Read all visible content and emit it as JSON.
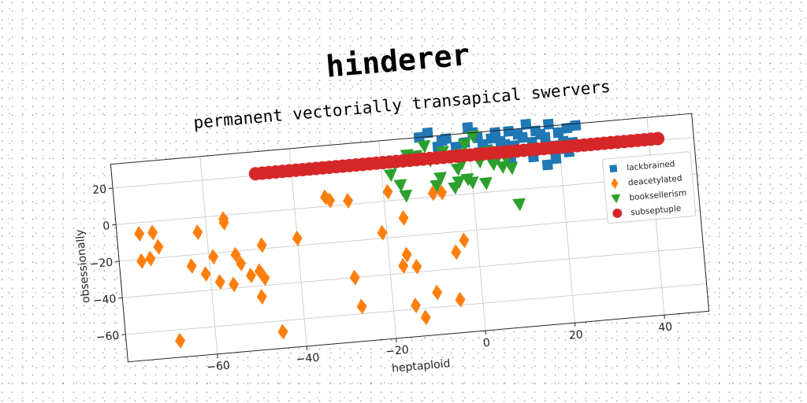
{
  "chart_data": {
    "type": "scatter",
    "title": "hinderer",
    "subtitle": "permanent vectorially transapical swervers",
    "xlabel": "heptaploid",
    "ylabel": "obsessionally",
    "xlim": [
      -80,
      50
    ],
    "ylim": [
      -75,
      33
    ],
    "xticks": [
      -60,
      -40,
      -20,
      0,
      20,
      40
    ],
    "yticks": [
      -60,
      -40,
      -20,
      0,
      20
    ],
    "grid": true,
    "legend_position": "right",
    "series": [
      {
        "name": "lackbrained",
        "marker": "square",
        "color": "#1f77b4",
        "points": [
          [
            -11,
            33
          ],
          [
            -9,
            35
          ],
          [
            -6,
            30
          ],
          [
            -7,
            27
          ],
          [
            -5,
            31
          ],
          [
            -3,
            26
          ],
          [
            -1,
            28
          ],
          [
            0,
            36
          ],
          [
            1,
            33
          ],
          [
            2,
            30
          ],
          [
            3,
            26
          ],
          [
            4,
            23
          ],
          [
            5,
            29
          ],
          [
            6,
            32
          ],
          [
            7,
            27
          ],
          [
            8,
            25
          ],
          [
            9,
            32
          ],
          [
            10,
            22
          ],
          [
            11,
            30
          ],
          [
            12,
            28
          ],
          [
            13,
            35
          ],
          [
            14,
            25
          ],
          [
            15,
            31
          ],
          [
            16,
            29
          ],
          [
            17,
            27
          ],
          [
            18,
            34
          ],
          [
            19,
            22
          ],
          [
            20,
            29
          ],
          [
            21,
            24
          ],
          [
            22,
            31
          ],
          [
            23,
            23
          ],
          [
            24,
            32
          ],
          [
            14,
            17
          ],
          [
            17,
            12
          ],
          [
            20,
            20
          ],
          [
            22,
            18
          ],
          [
            13,
            21
          ],
          [
            9,
            16
          ],
          [
            19,
            15
          ],
          [
            10,
            24
          ],
          [
            6,
            21
          ],
          [
            2,
            22
          ]
        ]
      },
      {
        "name": "deacetylated",
        "marker": "diamond",
        "color": "#ff7f0e",
        "points": [
          [
            -75,
            -6
          ],
          [
            -75,
            -21
          ],
          [
            -73,
            -20
          ],
          [
            -72,
            -6
          ],
          [
            -71,
            -14
          ],
          [
            -68,
            -66
          ],
          [
            -64,
            -26
          ],
          [
            -62,
            -8
          ],
          [
            -61,
            -31
          ],
          [
            -59,
            -22
          ],
          [
            -58,
            -36
          ],
          [
            -56,
            -2
          ],
          [
            -56,
            -4
          ],
          [
            -55,
            -38
          ],
          [
            -54,
            -22
          ],
          [
            -53,
            -27
          ],
          [
            -51,
            -34
          ],
          [
            -49,
            -32
          ],
          [
            -49,
            -46
          ],
          [
            -48,
            -36
          ],
          [
            -48,
            -18
          ],
          [
            -45,
            -66
          ],
          [
            -40,
            -16
          ],
          [
            -33,
            5
          ],
          [
            -32,
            3
          ],
          [
            -28,
            -40
          ],
          [
            -27,
            -56
          ],
          [
            -28,
            2
          ],
          [
            -21,
            -17
          ],
          [
            -19,
            5
          ],
          [
            -17,
            -36
          ],
          [
            -16,
            -10
          ],
          [
            -16,
            -30
          ],
          [
            -15,
            -58
          ],
          [
            -14,
            -37
          ],
          [
            -13,
            -65
          ],
          [
            -10,
            -52
          ],
          [
            -9,
            2
          ],
          [
            -7,
            2
          ],
          [
            -5,
            -57
          ],
          [
            -5,
            -31
          ],
          [
            -3,
            -25
          ]
        ]
      },
      {
        "name": "booksellerism",
        "marker": "triangle-down",
        "color": "#2ca02c",
        "points": [
          [
            -18,
            14
          ],
          [
            -17,
            20
          ],
          [
            -16,
            8
          ],
          [
            -15,
            2
          ],
          [
            -14,
            24
          ],
          [
            -12,
            23
          ],
          [
            -10,
            28
          ],
          [
            -9,
            20
          ],
          [
            -8,
            6
          ],
          [
            -7,
            10
          ],
          [
            -6,
            24
          ],
          [
            -5,
            21
          ],
          [
            -4,
            4
          ],
          [
            -3,
            14
          ],
          [
            -3,
            7
          ],
          [
            -2,
            17
          ],
          [
            -1,
            27
          ],
          [
            -1,
            8
          ],
          [
            0,
            6
          ],
          [
            1,
            31
          ],
          [
            2,
            17
          ],
          [
            3,
            5
          ],
          [
            4,
            22
          ],
          [
            5,
            15
          ],
          [
            6,
            18
          ],
          [
            7,
            13
          ],
          [
            8,
            17
          ],
          [
            9,
            12
          ],
          [
            10,
            -8
          ],
          [
            -2,
            22
          ]
        ]
      },
      {
        "name": "subseptuple",
        "marker": "circle",
        "color": "#d62728",
        "x_start": -48,
        "x_end": 43,
        "x_step": 1.5,
        "y": 21
      }
    ]
  }
}
